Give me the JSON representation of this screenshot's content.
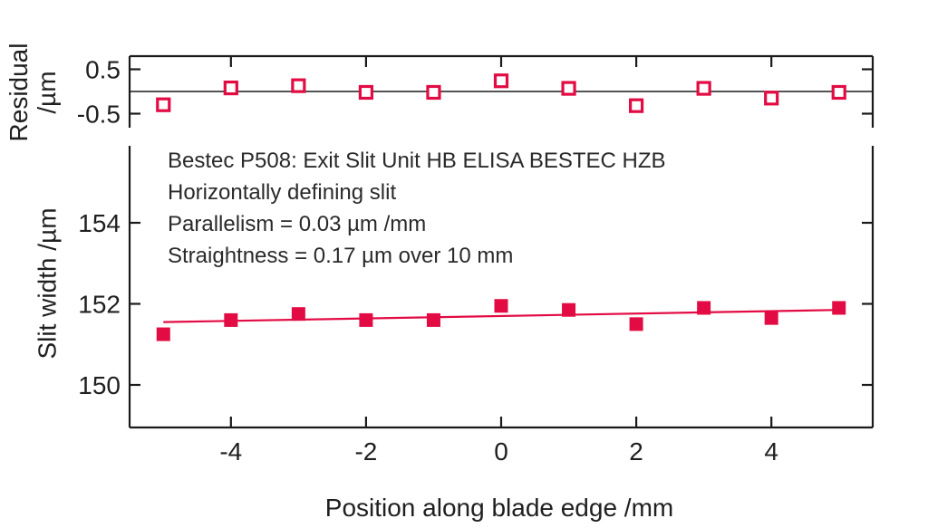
{
  "chart_data": {
    "type": "scatter",
    "xlabel": "Position along blade edge /mm",
    "xlim": [
      -5.5,
      5.5
    ],
    "xticks": [
      -4,
      -2,
      0,
      2,
      4
    ],
    "xtick_labels": [
      "-4",
      "-2",
      "0",
      "2",
      "4"
    ],
    "x": [
      -5,
      -4,
      -3,
      -2,
      -1,
      0,
      1,
      2,
      3,
      4,
      5
    ],
    "grid": false,
    "colors": {
      "marker": "#e20b43",
      "fit_line": "#e20b43",
      "axis": "#1a1a1a",
      "text": "#1f1f1f"
    },
    "panels": [
      {
        "id": "residual",
        "ylabel_line1": "Residual",
        "ylabel_line2": "/µm",
        "ytick_labels": [
          "0.5",
          "-0.5"
        ],
        "yticks": [
          0.5,
          -0.5
        ],
        "ylim": [
          -0.8,
          0.8
        ],
        "zero_line": 0,
        "marker": "open-square",
        "values": [
          -0.3,
          0.08,
          0.13,
          -0.02,
          -0.02,
          0.24,
          0.07,
          -0.32,
          0.07,
          -0.15,
          -0.02
        ]
      },
      {
        "id": "slit-width",
        "ylabel": "Slit width /µm",
        "ytick_labels": [
          "154",
          "152",
          "150"
        ],
        "yticks": [
          154,
          152,
          150
        ],
        "ylim": [
          149.0,
          155.9
        ],
        "marker": "filled-square",
        "values": [
          151.25,
          151.6,
          151.75,
          151.6,
          151.6,
          151.95,
          151.85,
          151.5,
          151.9,
          151.65,
          151.9
        ],
        "fit": {
          "intercept": 151.7,
          "slope": 0.03,
          "x_start": -5,
          "x_end": 5
        },
        "annotations": [
          "Bestec P508: Exit Slit Unit HB ELISA BESTEC HZB",
          "Horizontally defining slit",
          "Parallelism = 0.03 µm /mm",
          "Straightness = 0.17 µm over 10 mm"
        ]
      }
    ]
  }
}
